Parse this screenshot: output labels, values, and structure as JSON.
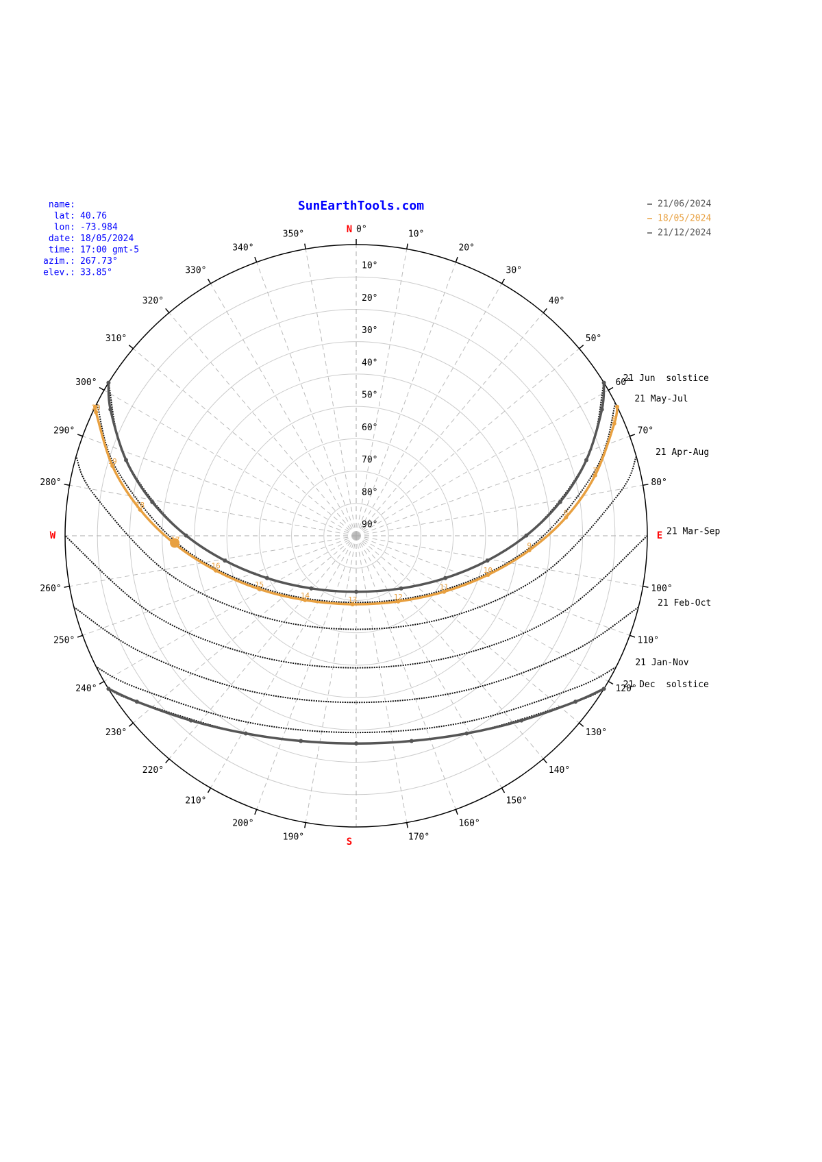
{
  "chart_data": {
    "type": "sunpath",
    "title": "SunEarthTools.com",
    "info": {
      "labels": [
        "name:",
        "lat:",
        "lon:",
        "date:",
        "time:",
        "azim.:",
        "elev.:"
      ],
      "values": [
        null,
        "40.76",
        "-73.984",
        "18/05/2024",
        "17:00 gmt-5",
        "267.73°",
        "33.85°"
      ]
    },
    "xlim": [
      0,
      360
    ],
    "xticks": [
      {
        "value": 0,
        "label": "0°"
      },
      {
        "value": 10,
        "label": "10°"
      },
      {
        "value": 20,
        "label": "20°"
      },
      {
        "value": 30,
        "label": "30°"
      },
      {
        "value": 40,
        "label": "40°"
      },
      {
        "value": 50,
        "label": "50°"
      },
      {
        "value": 60,
        "label": "60°"
      },
      {
        "value": 70,
        "label": "70°"
      },
      {
        "value": 80,
        "label": "80°"
      },
      {
        "value": 100,
        "label": "100°"
      },
      {
        "value": 110,
        "label": "110°"
      },
      {
        "value": 120,
        "label": "120°"
      },
      {
        "value": 130,
        "label": "130°"
      },
      {
        "value": 140,
        "label": "140°"
      },
      {
        "value": 150,
        "label": "150°"
      },
      {
        "value": 160,
        "label": "160°"
      },
      {
        "value": 170,
        "label": "170°"
      },
      {
        "value": 190,
        "label": "190°"
      },
      {
        "value": 200,
        "label": "200°"
      },
      {
        "value": 210,
        "label": "210°"
      },
      {
        "value": 220,
        "label": "220°"
      },
      {
        "value": 230,
        "label": "230°"
      },
      {
        "value": 240,
        "label": "240°"
      },
      {
        "value": 250,
        "label": "250°"
      },
      {
        "value": 260,
        "label": "260°"
      },
      {
        "value": 280,
        "label": "280°"
      },
      {
        "value": 290,
        "label": "290°"
      },
      {
        "value": 300,
        "label": "300°"
      },
      {
        "value": 310,
        "label": "310°"
      },
      {
        "value": 320,
        "label": "320°"
      },
      {
        "value": 330,
        "label": "330°"
      },
      {
        "value": 340,
        "label": "340°"
      },
      {
        "value": 350,
        "label": "350°"
      }
    ],
    "cardinals": [
      {
        "value": 0,
        "label": "N"
      },
      {
        "value": 90,
        "label": "E"
      },
      {
        "value": 180,
        "label": "S"
      },
      {
        "value": 270,
        "label": "W"
      }
    ],
    "ylim": [
      0,
      90
    ],
    "yticks": [
      {
        "value": 10,
        "label": "10°"
      },
      {
        "value": 20,
        "label": "20°"
      },
      {
        "value": 30,
        "label": "30°"
      },
      {
        "value": 40,
        "label": "40°"
      },
      {
        "value": 50,
        "label": "50°"
      },
      {
        "value": 60,
        "label": "60°"
      },
      {
        "value": 70,
        "label": "70°"
      },
      {
        "value": 80,
        "label": "80°"
      },
      {
        "value": 90,
        "label": "90°"
      }
    ],
    "grid": true,
    "series": [
      {
        "name": "21/06/2024",
        "color": "#555555",
        "azimuth": [
          58.3,
          62.8,
          71.8,
          80.6,
          89.9,
          100.7,
          115.4,
          139.5,
          180,
          220.5,
          244.6,
          259.3,
          270.1,
          279.4,
          288.2,
          297.2,
          301.7
        ],
        "elevation": [
          0,
          4.6,
          15.1,
          26.1,
          37.4,
          48.7,
          59.5,
          68.6,
          72.7,
          68.6,
          59.5,
          48.7,
          37.4,
          26.1,
          15.1,
          4.6,
          0
        ]
      },
      {
        "name": "18/05/2024",
        "color": "#e8a040",
        "azimuth": [
          63.7,
          66.5,
          75.8,
          85.0,
          94.8,
          106.5,
          122.5,
          147.4,
          183.1,
          218.5,
          241.2,
          256.1,
          267.3,
          276.9,
          286.0,
          295.4,
          296.3
        ],
        "elevation": [
          0,
          3.0,
          13.8,
          24.9,
          36.3,
          47.5,
          57.8,
          65.9,
          68.8,
          64.6,
          55.8,
          45.3,
          34.0,
          22.7,
          11.6,
          0.95,
          0
        ],
        "hours": [
          null,
          6,
          7,
          8,
          9,
          10,
          11,
          12,
          13,
          14,
          15,
          16,
          17,
          18,
          19,
          20,
          null
        ]
      },
      {
        "name": "21/12/2024",
        "color": "#555555",
        "azimuth": [
          121.7,
          127.1,
          138.2,
          150.8,
          164.9,
          180,
          195.1,
          209.2,
          221.8,
          232.9,
          238.3
        ],
        "elevation": [
          0,
          5.0,
          13.4,
          20.0,
          24.3,
          25.8,
          24.3,
          20.0,
          13.4,
          5.0,
          0
        ]
      }
    ],
    "paths": [
      {
        "name": "21 Jun  solstice",
        "azimuth": [
          58.3,
          71.8,
          89.9,
          115.4,
          180,
          244.6,
          270.1,
          288.2,
          301.7
        ],
        "elevation": [
          0,
          15.1,
          37.4,
          59.5,
          72.7,
          59.5,
          37.4,
          15.1,
          0
        ]
      },
      {
        "name": "21 May-Jul",
        "azimuth": [
          62.9,
          74.4,
          93.2,
          119.8,
          180,
          240.2,
          266.8,
          285.6,
          297.1
        ],
        "elevation": [
          0,
          13.0,
          35.5,
          57.2,
          69.4,
          57.2,
          35.5,
          13.0,
          0
        ]
      },
      {
        "name": "21 Apr-Aug",
        "azimuth": [
          74.2,
          80.9,
          100.9,
          129.1,
          180,
          230.9,
          259.1,
          279.1,
          285.8
        ],
        "elevation": [
          0,
          7.7,
          30.4,
          50.9,
          61.1,
          50.9,
          30.4,
          7.7,
          0
        ]
      },
      {
        "name": "21 Mar-Sep",
        "azimuth": [
          90,
          110.7,
          138.5,
          180,
          221.5,
          249.3,
          270
        ],
        "elevation": [
          0,
          22.3,
          41.0,
          49.2,
          41.0,
          22.3,
          0
        ]
      },
      {
        "name": "21 Feb-Oct",
        "azimuth": [
          104.2,
          118.5,
          144.8,
          180,
          215.2,
          241.5,
          255.8
        ],
        "elevation": [
          0,
          14.5,
          31.5,
          38.5,
          31.5,
          14.5,
          0
        ]
      },
      {
        "name": "21 Jan-Nov",
        "azimuth": [
          116.8,
          124.8,
          149.3,
          180,
          210.7,
          235.2,
          243.2
        ],
        "elevation": [
          0,
          7.6,
          23.1,
          29.2,
          23.1,
          7.6,
          0
        ]
      },
      {
        "name": "21 Dec  solstice",
        "azimuth": [
          121.7,
          127.1,
          150.8,
          180,
          209.2,
          232.9,
          238.3
        ],
        "elevation": [
          0,
          5.0,
          20.0,
          25.8,
          20.0,
          5.0,
          0
        ]
      }
    ],
    "sun_position": {
      "azimuth": 267.73,
      "elevation": 33.85,
      "color": "#e8a040"
    }
  }
}
